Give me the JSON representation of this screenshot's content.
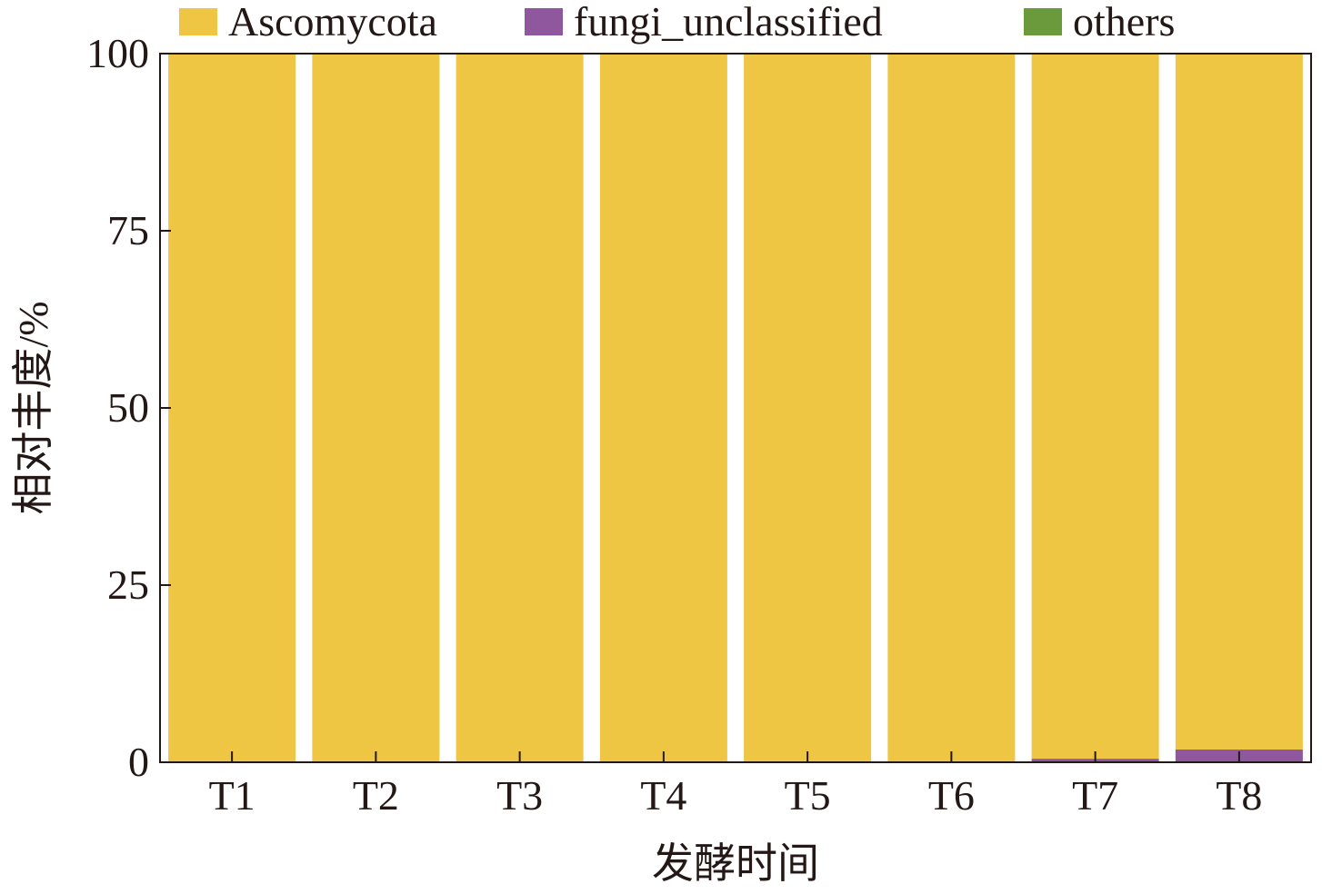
{
  "chart_data": {
    "type": "bar",
    "stacked": true,
    "title": "",
    "xlabel": "发酵时间",
    "ylabel": "相对丰度/%",
    "ylim": [
      0,
      100
    ],
    "yticks": [
      "0",
      "25",
      "50",
      "75",
      "100"
    ],
    "categories": [
      "T1",
      "T2",
      "T3",
      "T4",
      "T5",
      "T6",
      "T7",
      "T8"
    ],
    "legend_position": "top",
    "grid": false,
    "series": [
      {
        "name": "Ascomycota",
        "color": "#EEC643",
        "values": [
          100,
          100,
          100,
          100,
          100,
          99.9,
          99.5,
          98.2
        ]
      },
      {
        "name": "fungi_unclassified",
        "color": "#8E579E",
        "values": [
          0,
          0,
          0,
          0,
          0,
          0.1,
          0.5,
          1.8
        ]
      },
      {
        "name": "others",
        "color": "#6A9A3C",
        "values": [
          0,
          0,
          0,
          0,
          0,
          0,
          0,
          0
        ]
      }
    ]
  }
}
